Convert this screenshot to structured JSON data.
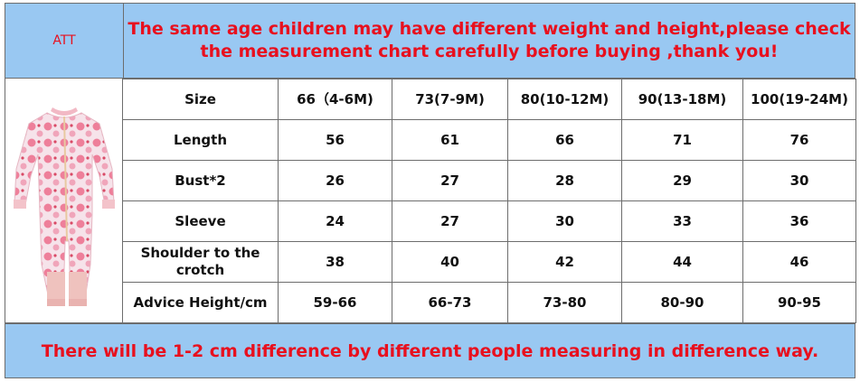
{
  "header": {
    "att_label": "ATT",
    "notice": "The same age children may have different weight and height,please check the measurement chart carefully before buying ,thank you!"
  },
  "product_image": {
    "icon": "baby-romper-icon"
  },
  "size_table": {
    "columns": [
      "Size",
      "66（4-6M)",
      "73(7-9M)",
      "80(10-12M)",
      "90(13-18M)",
      "100(19-24M)"
    ],
    "rows": [
      {
        "label": "Length",
        "values": [
          "56",
          "61",
          "66",
          "71",
          "76"
        ]
      },
      {
        "label": "Bust*2",
        "values": [
          "26",
          "27",
          "28",
          "29",
          "30"
        ]
      },
      {
        "label": "Sleeve",
        "values": [
          "24",
          "27",
          "30",
          "33",
          "36"
        ]
      },
      {
        "label": "Shoulder to the crotch",
        "values": [
          "38",
          "40",
          "42",
          "44",
          "46"
        ]
      },
      {
        "label": "Advice Height/cm",
        "values": [
          "59-66",
          "66-73",
          "73-80",
          "80-90",
          "90-95"
        ]
      }
    ]
  },
  "footer": {
    "notice": "There will be 1-2 cm difference by different people measuring in difference way."
  },
  "colors": {
    "banner_bg": "#99c8f2",
    "notice_text": "#e8101e",
    "grid": "#6d6d6d"
  }
}
